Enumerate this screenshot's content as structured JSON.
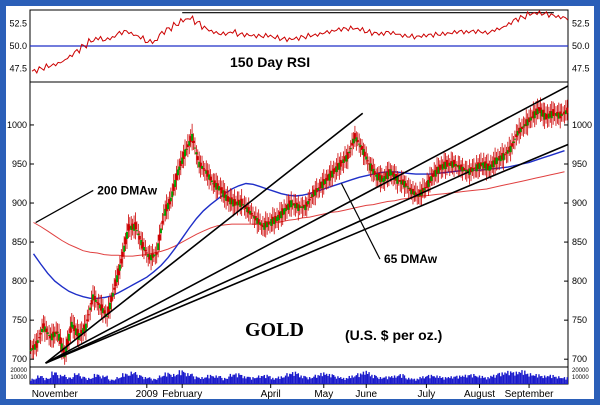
{
  "chart_data": {
    "type": "candlestick",
    "title": "GOLD",
    "unit_label": "(U.S. $ per oz.)",
    "x_ticks": [
      "November",
      "2009",
      "February",
      "April",
      "May",
      "June",
      "July",
      "August",
      "September"
    ],
    "x_tick_weeks": [
      3.5,
      16.5,
      21.5,
      34,
      41.5,
      47.5,
      56,
      63.5,
      70.5
    ],
    "weeks": 76,
    "price_axis": {
      "ylim": [
        690,
        1055
      ],
      "ticks": [
        700,
        750,
        800,
        850,
        900,
        950,
        1000
      ]
    },
    "rsi_axis": {
      "ylim": [
        46,
        54
      ],
      "ticks": [
        47.5,
        50.0,
        52.5
      ],
      "tick_labels": [
        "47.5",
        "50.0",
        "52.5"
      ],
      "midline": 50.0,
      "upper_line": 53.7,
      "upper_line_weeks": [
        21.5,
        74
      ]
    },
    "rsi_label": "150 Day RSI",
    "volume_axis": {
      "ticks": [
        "20000",
        "10000"
      ]
    },
    "price_weekly_close": [
      718,
      742,
      728,
      735,
      705,
      745,
      730,
      742,
      780,
      768,
      755,
      790,
      825,
      868,
      870,
      845,
      830,
      835,
      885,
      905,
      940,
      965,
      985,
      950,
      940,
      925,
      918,
      905,
      900,
      900,
      890,
      880,
      870,
      875,
      880,
      890,
      900,
      895,
      895,
      910,
      920,
      930,
      940,
      950,
      960,
      985,
      970,
      950,
      935,
      930,
      940,
      930,
      925,
      915,
      910,
      920,
      935,
      945,
      950,
      950,
      945,
      940,
      945,
      950,
      945,
      955,
      960,
      970,
      990,
      1000,
      1010,
      1020,
      1010,
      1015,
      1012,
      1018
    ],
    "rsi_weekly": [
      47.2,
      47.5,
      47.8,
      48.0,
      48.3,
      48.8,
      49.4,
      50.0,
      50.6,
      50.9,
      50.7,
      50.9,
      51.4,
      51.6,
      51.3,
      51.0,
      50.5,
      50.5,
      51.4,
      51.9,
      52.4,
      52.9,
      53.1,
      52.6,
      52.0,
      51.6,
      51.4,
      51.4,
      51.6,
      51.3,
      51.2,
      51.1,
      51.1,
      51.2,
      51.0,
      50.8,
      50.7,
      50.8,
      51.0,
      51.2,
      51.3,
      51.5,
      51.6,
      51.8,
      51.9,
      52.0,
      51.9,
      51.6,
      51.4,
      51.3,
      51.5,
      51.4,
      51.2,
      51.1,
      51.0,
      51.1,
      51.2,
      51.3,
      51.4,
      51.5,
      51.6,
      51.5,
      51.6,
      51.6,
      51.5,
      51.8,
      52.0,
      52.4,
      52.9,
      53.2,
      53.6,
      53.7,
      53.6,
      53.4,
      53.2,
      53.1
    ],
    "ma200": [
      875,
      870,
      864,
      858,
      852,
      847,
      843,
      839,
      837,
      836,
      834,
      833,
      833,
      832,
      832,
      833,
      834,
      836,
      838,
      841,
      845,
      850,
      855,
      860,
      864,
      868,
      871,
      872,
      873,
      873,
      873,
      873,
      873,
      874,
      875,
      876,
      878,
      879,
      881,
      882,
      884,
      886,
      888,
      889,
      891,
      893,
      895,
      897,
      898,
      900,
      902,
      903,
      905,
      906,
      908,
      909,
      910,
      911,
      912,
      913,
      914,
      915,
      916,
      917,
      918,
      920,
      922,
      924,
      926,
      928,
      930,
      932,
      934,
      936,
      938,
      940
    ],
    "ma65": [
      835,
      822,
      810,
      800,
      793,
      787,
      783,
      780,
      778,
      778,
      779,
      781,
      785,
      790,
      795,
      800,
      805,
      812,
      820,
      830,
      842,
      855,
      868,
      880,
      890,
      898,
      905,
      912,
      918,
      922,
      925,
      924,
      921,
      918,
      915,
      912,
      910,
      909,
      910,
      912,
      915,
      918,
      921,
      924,
      927,
      930,
      933,
      935,
      937,
      939,
      940,
      940,
      939,
      938,
      937,
      937,
      937,
      938,
      939,
      940,
      941,
      942,
      942,
      942,
      943,
      944,
      945,
      946,
      948,
      950,
      952,
      955,
      958,
      961,
      964,
      967
    ],
    "volume_weekly": [
      35,
      55,
      40,
      80,
      60,
      45,
      70,
      50,
      40,
      65,
      55,
      30,
      45,
      70,
      80,
      60,
      45,
      35,
      55,
      75,
      65,
      90,
      70,
      50,
      45,
      60,
      55,
      40,
      65,
      70,
      50,
      45,
      55,
      60,
      40,
      50,
      70,
      80,
      55,
      45,
      60,
      75,
      65,
      50,
      40,
      55,
      70,
      85,
      60,
      45,
      50,
      55,
      65,
      40,
      35,
      50,
      60,
      55,
      45,
      50,
      55,
      60,
      65,
      55,
      45,
      60,
      75,
      85,
      80,
      90,
      70,
      65,
      55,
      60,
      50,
      45
    ],
    "trend_lines": [
      {
        "from": [
          2.2,
          695
        ],
        "to": [
          47,
          1015
        ]
      },
      {
        "from": [
          2.2,
          695
        ],
        "to": [
          62,
          940
        ]
      },
      {
        "from": [
          2.2,
          695
        ],
        "to": [
          76,
          1050
        ]
      },
      {
        "from": [
          2.2,
          695
        ],
        "to": [
          76,
          975
        ]
      }
    ],
    "annotations": [
      {
        "text": "200 DMAw",
        "anchor_week": 0.8,
        "anchor_value": 875,
        "label_week": 9.5,
        "label_value": 911
      },
      {
        "text": "65 DMAw",
        "anchor_week": 44,
        "anchor_value": 925,
        "label_week": 50,
        "label_value": 823
      }
    ],
    "colors": {
      "price": "#cc0000",
      "price_up": "#00a000",
      "rsi": "#cc0000",
      "ma65": "#1f2fc8",
      "ma200": "#e04040",
      "trend": "#000000",
      "volume": "#1a1acc",
      "frame": "#2b5fb8",
      "midline": "#1f2fc8"
    }
  }
}
